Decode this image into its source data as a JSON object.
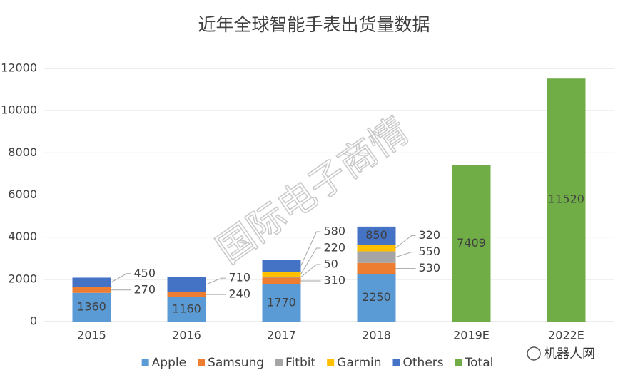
{
  "chart_data": {
    "type": "stacked_bar",
    "title": "近年全球智能手表出货量数据",
    "categories": [
      "2015",
      "2016",
      "2017",
      "2018",
      "2019E",
      "2022E"
    ],
    "series": [
      {
        "name": "Apple",
        "color": "#5b9bd5",
        "values": [
          1360,
          1160,
          1770,
          2250,
          null,
          null
        ]
      },
      {
        "name": "Samsung",
        "color": "#ed7d31",
        "values": [
          270,
          240,
          310,
          530,
          null,
          null
        ]
      },
      {
        "name": "Fitbit",
        "color": "#a5a5a5",
        "values": [
          null,
          null,
          50,
          550,
          null,
          null
        ]
      },
      {
        "name": "Garmin",
        "color": "#ffc000",
        "values": [
          null,
          null,
          220,
          320,
          null,
          null
        ]
      },
      {
        "name": "Others",
        "color": "#4472c4",
        "values": [
          450,
          710,
          580,
          850,
          null,
          null
        ]
      },
      {
        "name": "Total",
        "color": "#70ad47",
        "values": [
          null,
          null,
          null,
          null,
          7409,
          11520
        ]
      }
    ],
    "ylim": [
      0,
      12000
    ],
    "yticks": [
      0,
      2000,
      4000,
      6000,
      8000,
      10000,
      12000
    ],
    "grid": true,
    "legend": "bottom",
    "watermark": "国际电子商情",
    "source": "机器人网"
  }
}
